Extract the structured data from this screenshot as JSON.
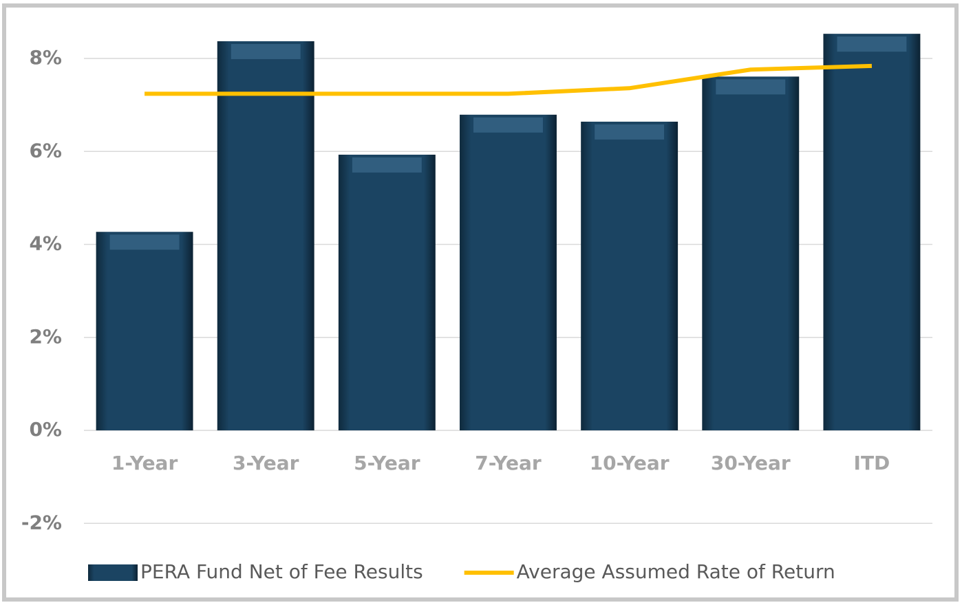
{
  "chart_data": {
    "type": "bar",
    "categories": [
      "1-Year",
      "3-Year",
      "5-Year",
      "7-Year",
      "10-Year",
      "30-Year",
      "ITD"
    ],
    "series": [
      {
        "name": "PERA Fund Net of Fee Results",
        "type": "bar",
        "color": "#1b4462",
        "values": [
          4.27,
          8.37,
          5.93,
          6.79,
          6.64,
          7.61,
          8.53
        ]
      },
      {
        "name": "Average Assumed Rate of Return",
        "type": "line",
        "color": "#ffc000",
        "values": [
          7.24,
          7.24,
          7.24,
          7.24,
          7.36,
          7.76,
          7.84
        ]
      }
    ],
    "ylim": [
      -2,
      8.6
    ],
    "yticks": [
      {
        "value": -2,
        "label": "-2%"
      },
      {
        "value": 0,
        "label": "0%"
      },
      {
        "value": 2,
        "label": "2%"
      },
      {
        "value": 4,
        "label": "4%"
      },
      {
        "value": 6,
        "label": "6%"
      },
      {
        "value": 8,
        "label": "8%"
      }
    ],
    "grid": true,
    "legend": "bottom"
  }
}
